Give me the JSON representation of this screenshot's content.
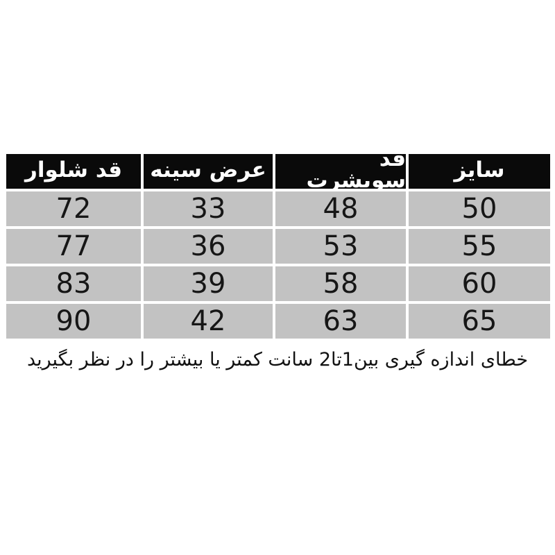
{
  "chart_data": {
    "type": "table",
    "direction": "rtl",
    "columns": [
      "سایز",
      "قد سویشرت",
      "عرض سینه",
      "قد شلوار"
    ],
    "rows": [
      [
        50,
        48,
        33,
        72
      ],
      [
        55,
        53,
        36,
        77
      ],
      [
        60,
        58,
        39,
        83
      ],
      [
        65,
        63,
        42,
        90
      ]
    ],
    "note": "خطای اندازه گیری بین1تا2 سانت کمتر یا بیشتر را در نظر بگیرید"
  },
  "colors": {
    "page_bg": "#ffffff",
    "header_bg": "#0a0a0a",
    "header_text": "#ffffff",
    "cell_bg": "#c2c2c2",
    "cell_text": "#161616"
  }
}
